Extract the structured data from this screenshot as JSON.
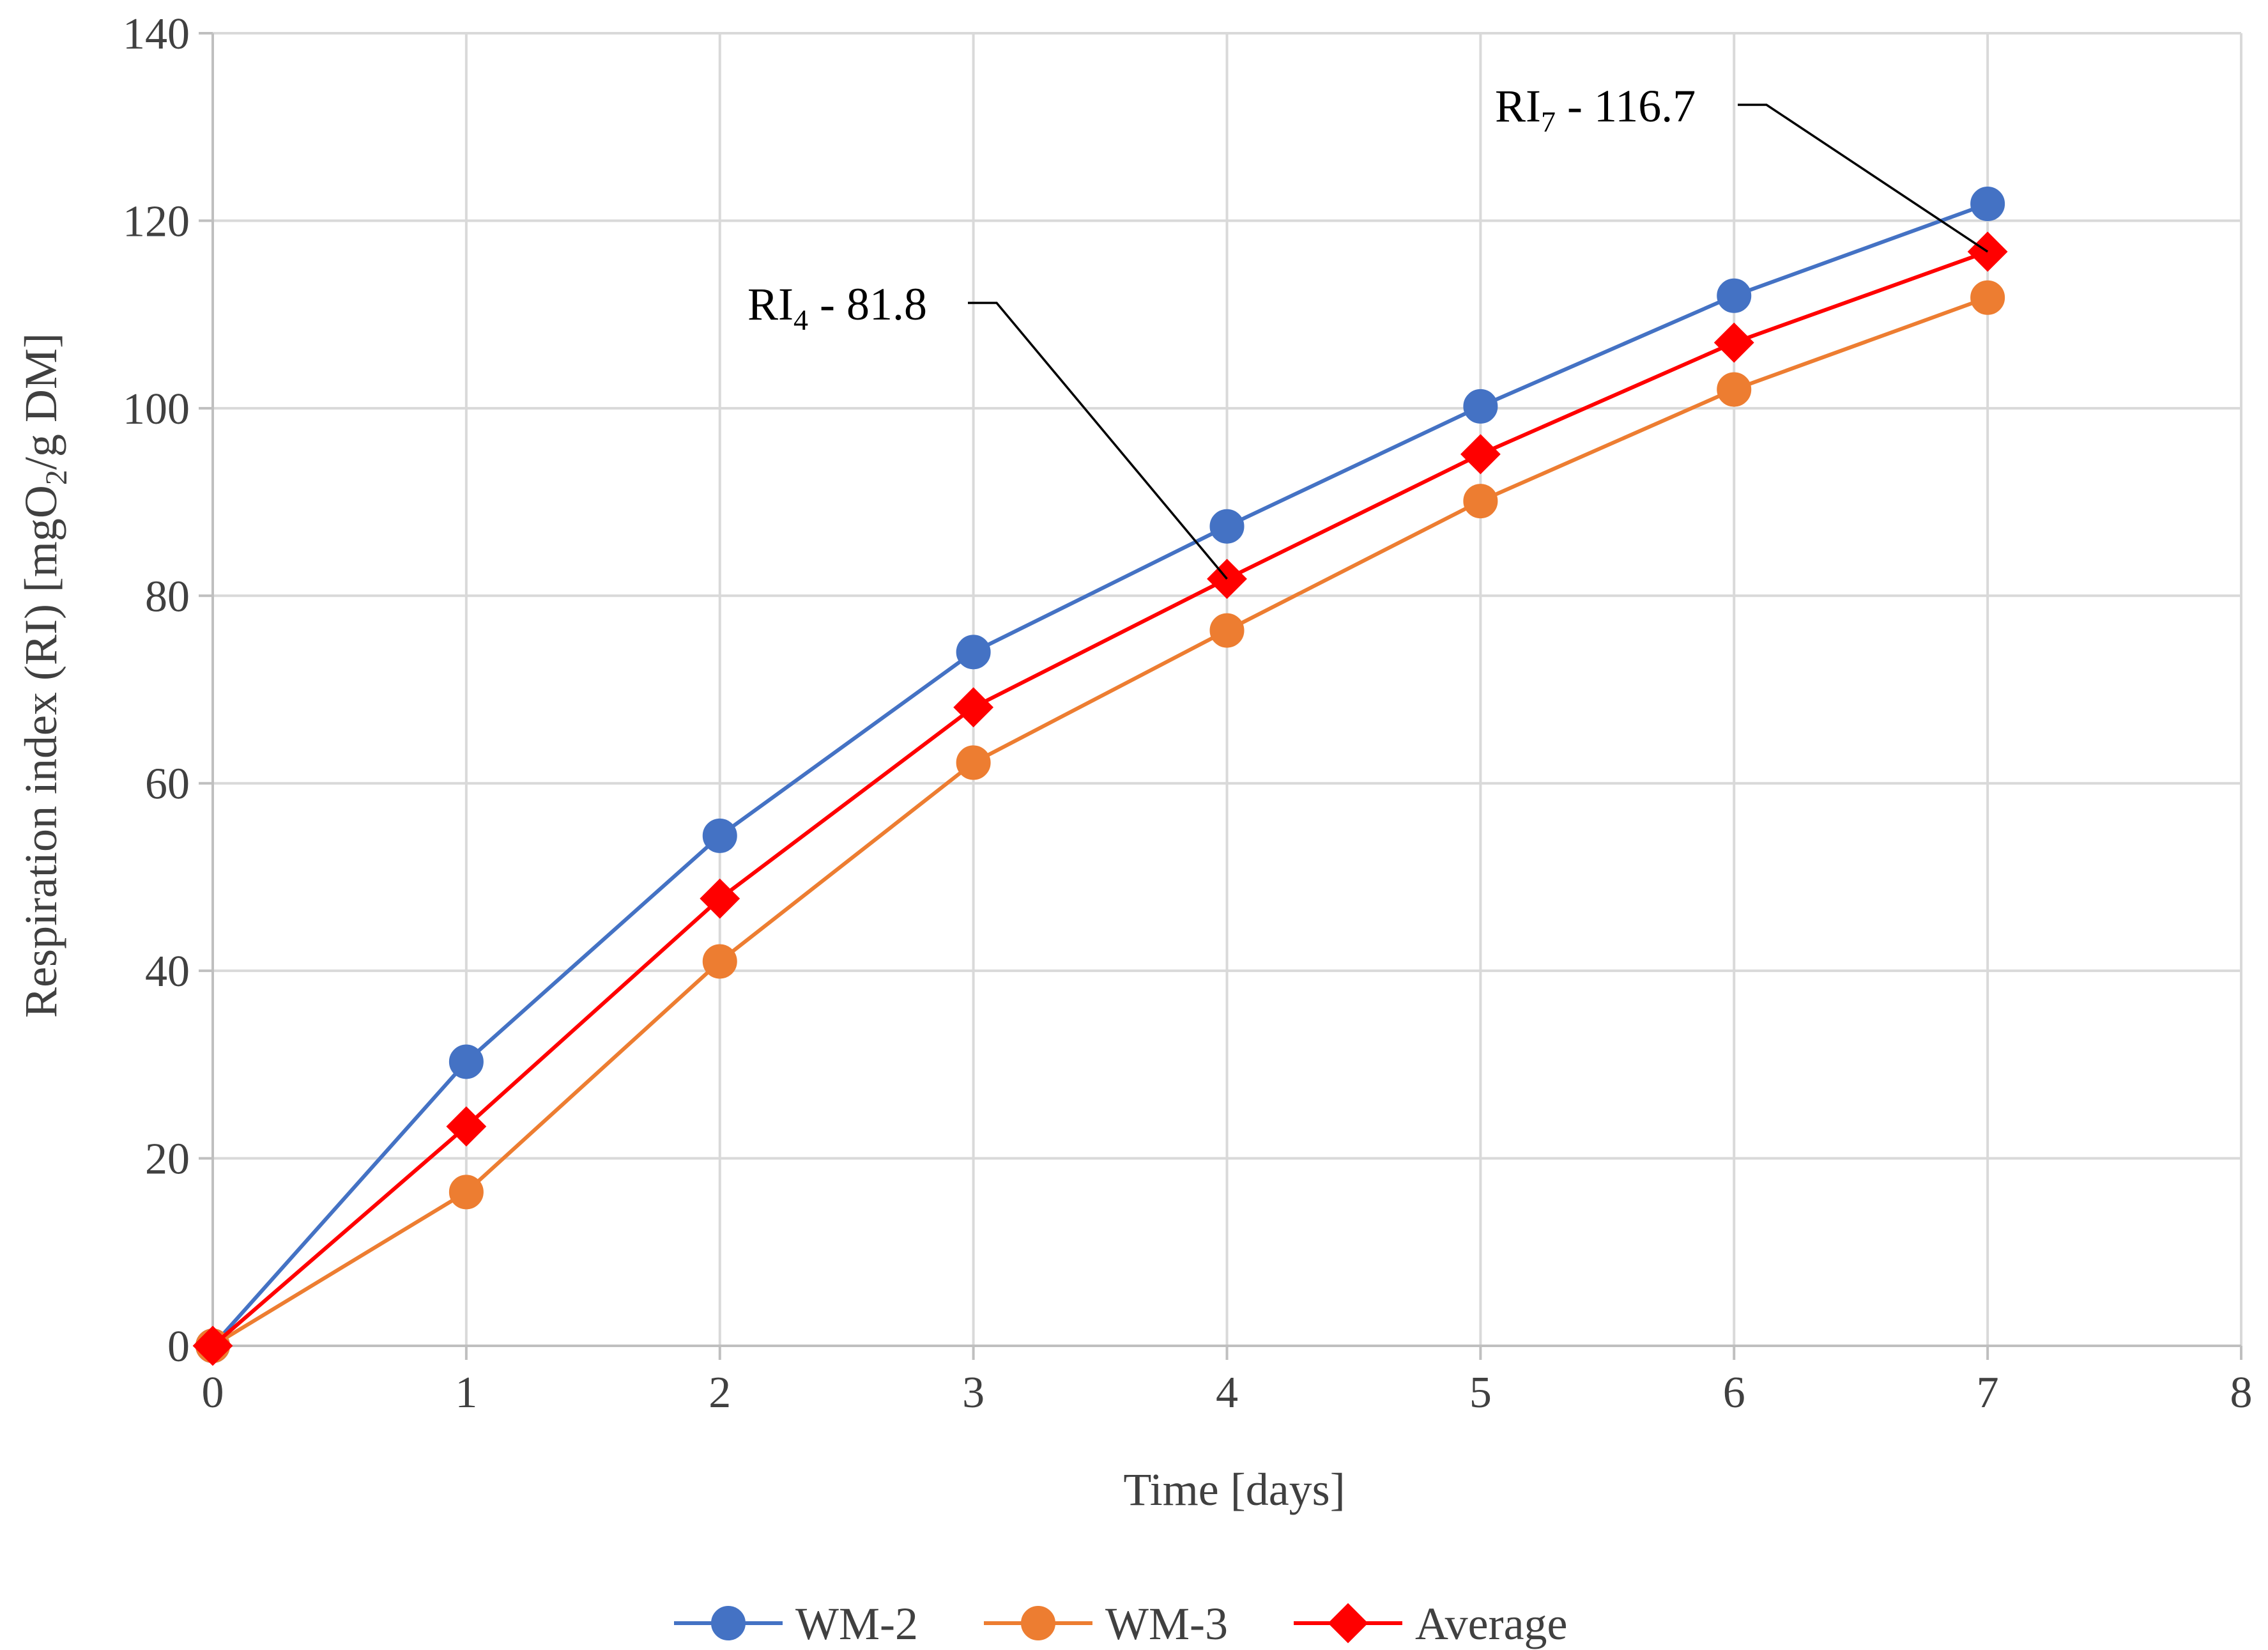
{
  "chart_data": {
    "type": "line",
    "title": "",
    "xlabel": "Time [days]",
    "ylabel": "Respiration index (RI) [mgO2/g DM]",
    "ylabel_parts": {
      "pre": "Respiration index (RI) [mgO",
      "sub": "2",
      "post": "/g DM]"
    },
    "xlim": [
      0,
      8
    ],
    "ylim": [
      0,
      140
    ],
    "xticks": [
      "0",
      "1",
      "2",
      "3",
      "4",
      "5",
      "6",
      "7",
      "8"
    ],
    "yticks": [
      "0",
      "20",
      "40",
      "60",
      "80",
      "100",
      "120",
      "140"
    ],
    "grid": true,
    "legend_position": "bottom",
    "x": [
      0,
      1,
      2,
      3,
      4,
      5,
      6,
      7
    ],
    "series": [
      {
        "name": "WM-2",
        "marker": "circle",
        "color": "#4472C4",
        "values": [
          0,
          30.3,
          54.4,
          74.0,
          87.4,
          100.2,
          112.0,
          121.8
        ]
      },
      {
        "name": "WM-3",
        "marker": "circle",
        "color": "#ED7D31",
        "values": [
          0,
          16.4,
          41.0,
          62.2,
          76.3,
          90.1,
          102.0,
          111.8
        ]
      },
      {
        "name": "Average",
        "marker": "diamond",
        "color": "#FF0000",
        "values": [
          0,
          23.4,
          47.7,
          68.1,
          81.8,
          95.1,
          107.0,
          116.7
        ]
      }
    ],
    "annotations": [
      {
        "label": "RI4 - 81.8",
        "main": "RI",
        "sub": "4",
        "rest": " - 81.8",
        "x": 4,
        "y": 81.8
      },
      {
        "label": "RI7 - 116.7",
        "main": "RI",
        "sub": "7",
        "rest": " - 116.7",
        "x": 7,
        "y": 116.7
      }
    ]
  }
}
